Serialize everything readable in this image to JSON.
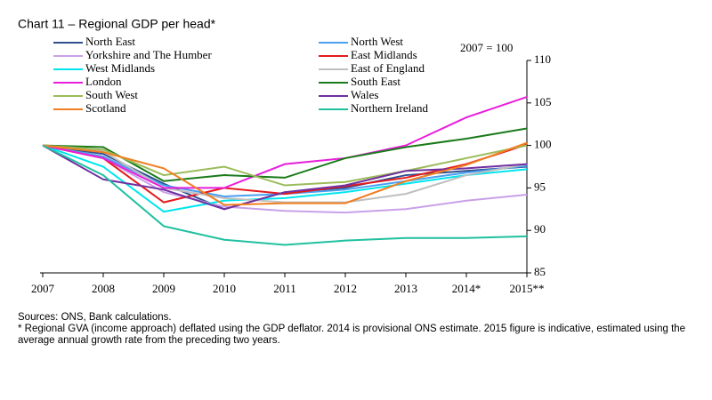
{
  "chart_data": {
    "type": "line",
    "title": "Chart 11 – Regional GDP per head*",
    "annotation": "2007 = 100",
    "sources": "Sources: ONS, Bank calculations.",
    "footnote": "* Regional GVA (income approach) deflated using the GDP deflator.  2014 is provisional ONS estimate. 2015  figure is indicative, estimated using the average annual growth rate from the preceding two years.",
    "categories": [
      "2007",
      "2008",
      "2009",
      "2010",
      "2011",
      "2012",
      "2013",
      "2014*",
      "2015**"
    ],
    "ylim": [
      85,
      110
    ],
    "yticks": [
      85,
      90,
      95,
      100,
      105,
      110
    ],
    "y_axis_side": "right",
    "series": [
      {
        "name": "North East",
        "color": "#2F4F8F",
        "values": [
          100,
          99,
          95.5,
          92.5,
          94.5,
          95,
          96.5,
          97,
          97.5
        ]
      },
      {
        "name": "North West",
        "color": "#4A9FF0",
        "values": [
          100,
          98.7,
          95.3,
          94,
          94.3,
          94.8,
          95.8,
          96.8,
          97.6
        ]
      },
      {
        "name": "Yorkshire and The Humber",
        "color": "#C9A0E8",
        "values": [
          100,
          98.5,
          94.5,
          92.8,
          92.3,
          92.1,
          92.5,
          93.5,
          94.2
        ]
      },
      {
        "name": "East Midlands",
        "color": "#E41A1C",
        "values": [
          100,
          98.5,
          93.3,
          95,
          94.3,
          95.2,
          96.2,
          97.8,
          100.1
        ]
      },
      {
        "name": "West Midlands",
        "color": "#00E5EE",
        "values": [
          100,
          97.5,
          92.2,
          93.5,
          93.8,
          94.5,
          95.5,
          96.5,
          97.2
        ]
      },
      {
        "name": "East of England",
        "color": "#BFBFBF",
        "values": [
          100,
          99.3,
          95,
          93.8,
          93.3,
          93.3,
          94.3,
          96.5,
          97.8
        ]
      },
      {
        "name": "London",
        "color": "#E91EDC",
        "values": [
          100,
          98.5,
          95,
          95,
          97.8,
          98.5,
          100,
          103.3,
          105.7
        ]
      },
      {
        "name": "South East",
        "color": "#1A7A1A",
        "values": [
          100,
          99.8,
          95.8,
          96.5,
          96.2,
          98.5,
          99.8,
          100.8,
          102
        ]
      },
      {
        "name": "South West",
        "color": "#9BBB59",
        "values": [
          100,
          99.5,
          96.5,
          97.5,
          95.3,
          95.7,
          97,
          98.5,
          100
        ]
      },
      {
        "name": "Wales",
        "color": "#7030A0",
        "values": [
          100,
          96,
          94.8,
          92.5,
          94.5,
          95.3,
          97,
          97.3,
          97.8
        ]
      },
      {
        "name": "Scotland",
        "color": "#F07F21",
        "values": [
          100,
          99.2,
          97.3,
          93,
          93.2,
          93.2,
          95.8,
          97.7,
          100.3
        ]
      },
      {
        "name": "Northern Ireland",
        "color": "#20C0A0",
        "values": [
          100,
          96.5,
          90.5,
          88.9,
          88.3,
          88.8,
          89.1,
          89.1,
          89.3
        ]
      }
    ]
  }
}
